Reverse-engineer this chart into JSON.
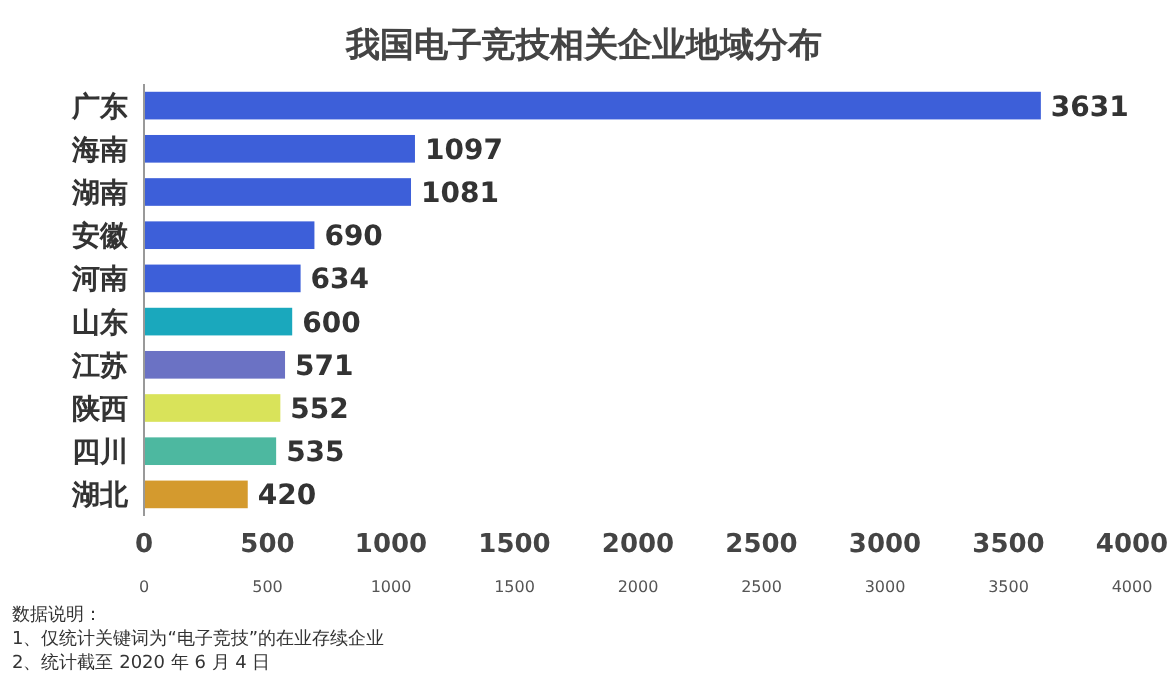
{
  "chart_data": {
    "type": "bar",
    "orientation": "horizontal",
    "title": "我国电子竞技相关企业地域分布",
    "categories": [
      "广东",
      "海南",
      "湖南",
      "安徽",
      "河南",
      "山东",
      "江苏",
      "陕西",
      "四川",
      "湖北"
    ],
    "values": [
      3631,
      1097,
      1081,
      690,
      634,
      600,
      571,
      552,
      535,
      420
    ],
    "colors": [
      "#3d5fd9",
      "#3d5fd9",
      "#3d5fd9",
      "#3d5fd9",
      "#3d5fd9",
      "#1aa8bd",
      "#6b72c4",
      "#d9e35a",
      "#4db8a0",
      "#d49a2e"
    ],
    "data_labels": true,
    "grid": false,
    "xlim": [
      0,
      4000
    ],
    "xticks": [
      0,
      500,
      1000,
      1500,
      2000,
      2500,
      3000,
      3500,
      4000
    ],
    "x2lim": [
      0,
      4000
    ],
    "x2ticks": [
      0,
      500,
      1000,
      1500,
      2000,
      2500,
      3000,
      3500,
      4000
    ],
    "annotations": [
      "数据说明：",
      "1、仅统计关键词为“电子竞技”的在业存续企业",
      "2、统计截至 2020 年 6 月 4 日"
    ]
  }
}
